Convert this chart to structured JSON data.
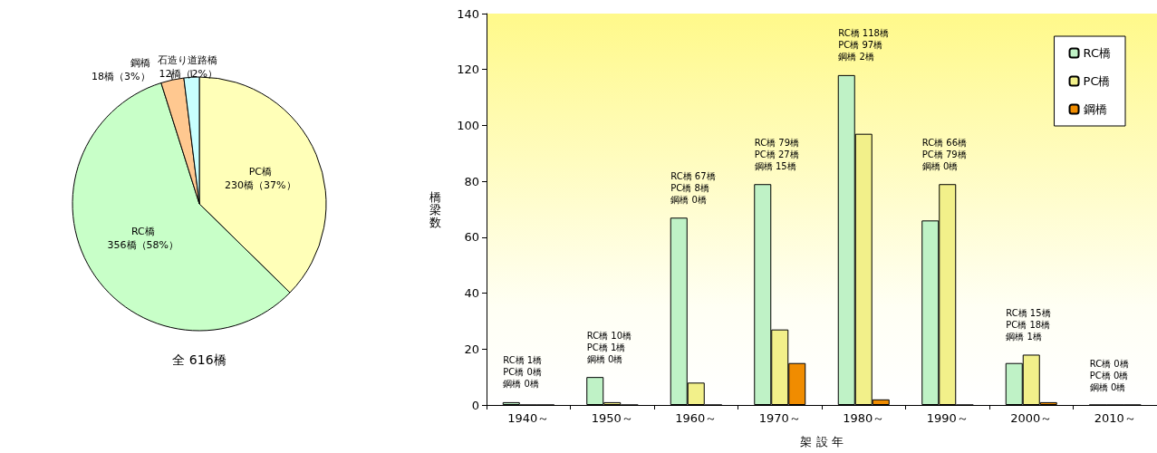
{
  "chart_data": [
    {
      "type": "pie",
      "title": "全 616橋",
      "categories": [
        "PC橋",
        "RC橋",
        "鋼橋",
        "石造り道路橋"
      ],
      "values": [
        230,
        356,
        18,
        12
      ],
      "colors": [
        "#ffffb8",
        "#c8ffc8",
        "#ffc890",
        "#c8ffff"
      ],
      "value_labels": [
        "230橋（37%）",
        "356橋（58%）",
        "18橋（3%）",
        "12橋（2%）"
      ]
    },
    {
      "type": "bar",
      "xlabel": "架 設 年",
      "ylabel": "橋梁数",
      "categories": [
        "1940～",
        "1950～",
        "1960～",
        "1970～",
        "1980～",
        "1990～",
        "2000～",
        "2010～"
      ],
      "series": [
        {
          "name": "RC橋",
          "color": "#bff2c6",
          "values": [
            1,
            10,
            67,
            79,
            118,
            66,
            15,
            0
          ]
        },
        {
          "name": "PC橋",
          "color": "#f2f08a",
          "values": [
            0,
            1,
            8,
            27,
            97,
            79,
            18,
            0
          ]
        },
        {
          "name": "鋼橋",
          "color": "#f08c00",
          "values": [
            0,
            0,
            0,
            15,
            2,
            0,
            1,
            0
          ]
        }
      ],
      "ylim": [
        0,
        140
      ],
      "yticks": [
        0,
        20,
        40,
        60,
        80,
        100,
        120,
        140
      ],
      "grid": false,
      "legend": "top right",
      "annotations": [
        "RC橋 1橋",
        "PC橋 0橋",
        "鋼橋 0橋",
        "RC橋 10橋",
        "PC橋 1橋",
        "鋼橋 0橋",
        "RC橋 67橋",
        "PC橋 8橋",
        "鋼橋 0橋",
        "RC橋 79橋",
        "PC橋 27橋",
        "鋼橋 15橋",
        "RC橋 118橋",
        "PC橋 97橋",
        "鋼橋 2橋",
        "RC橋 66橋",
        "PC橋 79橋",
        "鋼橋 0橋",
        "RC橋 15橋",
        "PC橋 18橋",
        "鋼橋 1橋",
        "RC橋 0橋",
        "PC橋 0橋",
        "鋼橋 0橋"
      ]
    }
  ]
}
